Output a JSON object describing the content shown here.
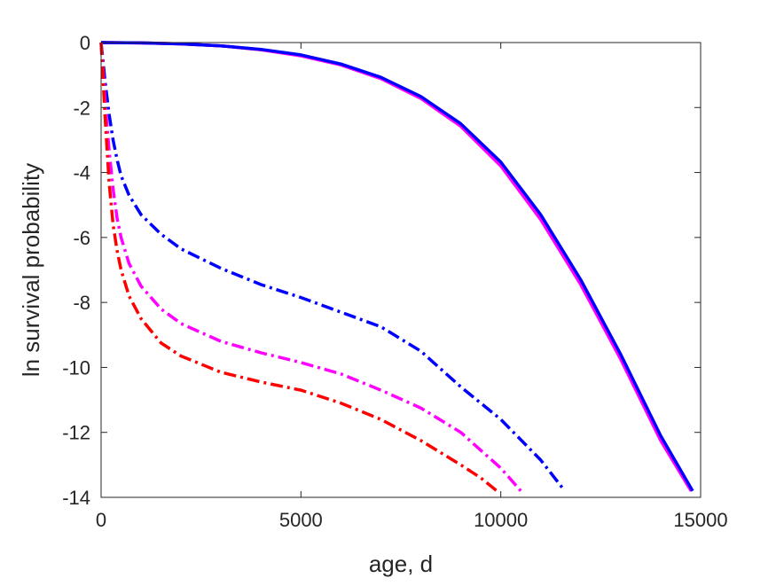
{
  "chart_data": {
    "type": "line",
    "title": "",
    "xlabel": "age, d",
    "ylabel": "ln survival probability",
    "xlim": [
      0,
      15000
    ],
    "ylim": [
      -14,
      0
    ],
    "xticks": [
      0,
      5000,
      10000,
      15000
    ],
    "yticks": [
      0,
      -2,
      -4,
      -6,
      -8,
      -10,
      -12,
      -14
    ],
    "xtick_labels": [
      "0",
      "5000",
      "10000",
      "15000"
    ],
    "ytick_labels": [
      "0",
      "-2",
      "-4",
      "-6",
      "-8",
      "-10",
      "-12",
      "-14"
    ],
    "grid": false,
    "legend": "none",
    "series": [
      {
        "color": "#ff0000",
        "style": "solid",
        "x": [
          0,
          1000,
          2000,
          3000,
          4000,
          5000,
          6000,
          7000,
          8000,
          9000,
          10000,
          11000,
          12000,
          13000,
          14000,
          14780
        ],
        "y": [
          0,
          -0.01,
          -0.04,
          -0.1,
          -0.22,
          -0.4,
          -0.68,
          -1.1,
          -1.7,
          -2.55,
          -3.75,
          -5.4,
          -7.4,
          -9.7,
          -12.2,
          -13.8
        ]
      },
      {
        "color": "#ff00ff",
        "style": "solid",
        "x": [
          0,
          1000,
          2000,
          3000,
          4000,
          5000,
          6000,
          7000,
          8000,
          9000,
          10000,
          11000,
          12000,
          13000,
          14000,
          14760
        ],
        "y": [
          0,
          -0.01,
          -0.04,
          -0.1,
          -0.22,
          -0.41,
          -0.69,
          -1.11,
          -1.72,
          -2.58,
          -3.8,
          -5.45,
          -7.45,
          -9.75,
          -12.25,
          -13.8
        ]
      },
      {
        "color": "#0000ff",
        "style": "solid",
        "x": [
          0,
          1000,
          2000,
          3000,
          4000,
          5000,
          6000,
          7000,
          8000,
          9000,
          10000,
          11000,
          12000,
          13000,
          14000,
          14800
        ],
        "y": [
          0,
          -0.01,
          -0.04,
          -0.1,
          -0.21,
          -0.38,
          -0.66,
          -1.07,
          -1.66,
          -2.5,
          -3.68,
          -5.3,
          -7.3,
          -9.6,
          -12.1,
          -13.8
        ]
      },
      {
        "color": "#0000ff",
        "style": "dashdot",
        "x": [
          0,
          100,
          200,
          300,
          400,
          500,
          700,
          1000,
          1500,
          2000,
          3000,
          4000,
          5000,
          6000,
          7000,
          8000,
          9000,
          10000,
          11000,
          11600
        ],
        "y": [
          0,
          -1.2,
          -2.2,
          -3.0,
          -3.6,
          -4.1,
          -4.7,
          -5.3,
          -5.9,
          -6.35,
          -6.95,
          -7.45,
          -7.85,
          -8.3,
          -8.75,
          -9.5,
          -10.6,
          -11.6,
          -12.85,
          -13.8
        ]
      },
      {
        "color": "#ff00ff",
        "style": "dashdot",
        "x": [
          0,
          100,
          200,
          300,
          400,
          500,
          700,
          1000,
          1500,
          2000,
          3000,
          4000,
          5000,
          6000,
          7000,
          8000,
          9000,
          9500,
          10000,
          10500
        ],
        "y": [
          0,
          -1.8,
          -3.3,
          -4.5,
          -5.4,
          -6.0,
          -6.8,
          -7.5,
          -8.2,
          -8.65,
          -9.2,
          -9.55,
          -9.85,
          -10.2,
          -10.7,
          -11.25,
          -12.0,
          -12.55,
          -13.1,
          -13.8
        ]
      },
      {
        "color": "#ff0000",
        "style": "dashdot",
        "x": [
          0,
          100,
          200,
          300,
          400,
          500,
          700,
          1000,
          1500,
          2000,
          3000,
          4000,
          5000,
          6000,
          7000,
          8000,
          9000,
          9500,
          9900
        ],
        "y": [
          0,
          -2.3,
          -4.3,
          -5.6,
          -6.4,
          -7.0,
          -7.8,
          -8.5,
          -9.25,
          -9.65,
          -10.15,
          -10.45,
          -10.7,
          -11.1,
          -11.6,
          -12.25,
          -13.0,
          -13.4,
          -13.8
        ]
      }
    ]
  }
}
